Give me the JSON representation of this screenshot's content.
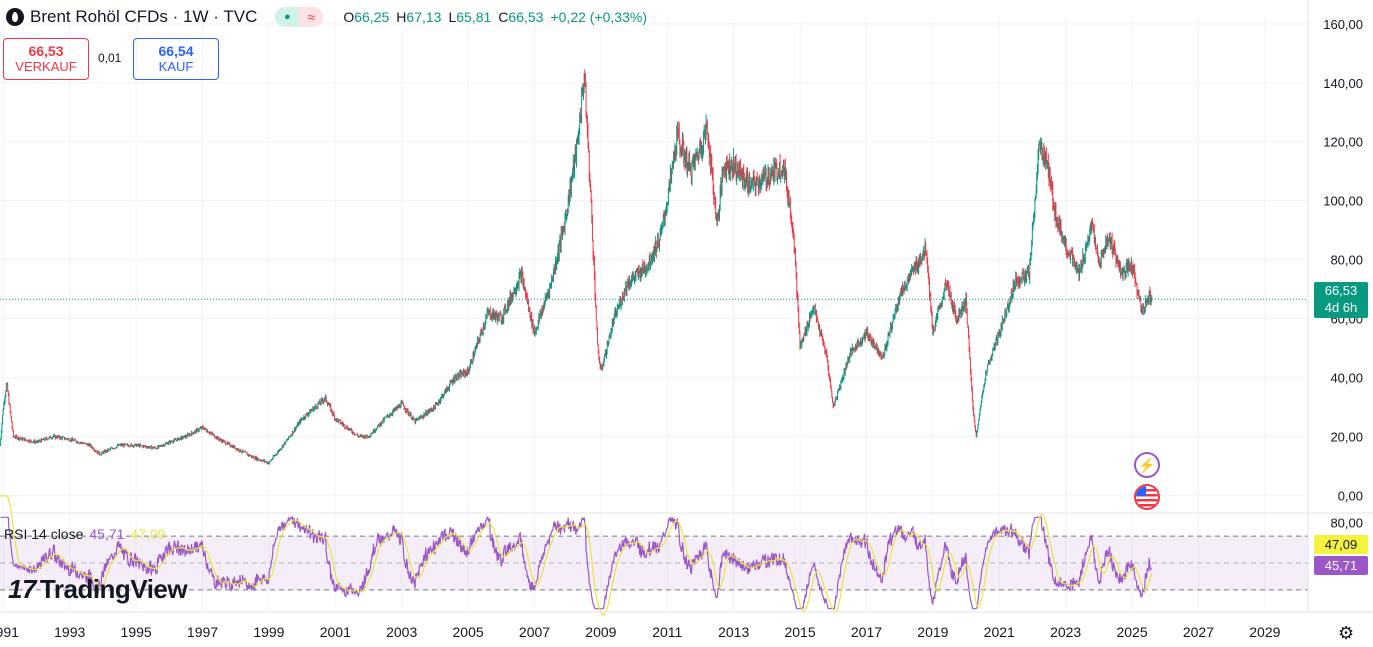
{
  "header": {
    "title": "Brent Rohöl CFDs · 1W · TVC",
    "ohlc": [
      {
        "k": "O",
        "v": "66,25"
      },
      {
        "k": "H",
        "v": "67,13"
      },
      {
        "k": "L",
        "v": "65,81"
      },
      {
        "k": "C",
        "v": "66,53"
      }
    ],
    "change": "+0,22 (+0,33%)",
    "pill_icon": "dot-icon",
    "pill_symbol": "≈"
  },
  "trade": {
    "sell_price": "66,53",
    "sell_label": "VERKAUF",
    "spread": "0,01",
    "buy_price": "66,54",
    "buy_label": "KAUF"
  },
  "price_tag": {
    "price": "66,53",
    "countdown": "4d 6h"
  },
  "rsi": {
    "label": "RSI 14 close",
    "value": "45,71",
    "ma": "47,09",
    "axis_top": "80,00"
  },
  "brand": "TradingView",
  "colors": {
    "up": "#089981",
    "down": "#f23645",
    "rsi": "#9c57c7",
    "rsi_ma": "#e6e63d",
    "accent": "#2962ff"
  },
  "chart_data": [
    {
      "type": "candlestick",
      "title": "Brent Rohöl CFDs",
      "interval": "1W",
      "x_ticks": [
        "1991",
        "1993",
        "1995",
        "1997",
        "1999",
        "2001",
        "2003",
        "2005",
        "2007",
        "2009",
        "2011",
        "2013",
        "2015",
        "2017",
        "2019",
        "2021",
        "2023",
        "2025",
        "2027",
        "2029"
      ],
      "y_ticks": [
        "0,00",
        "20,00",
        "40,00",
        "60,00",
        "80,00",
        "100,00",
        "120,00",
        "140,00",
        "160,00"
      ],
      "ylim": [
        -5,
        162
      ],
      "xlim": [
        1990.9,
        2030.3
      ],
      "last_price": 66.53,
      "price_series": [
        [
          1990.9,
          17
        ],
        [
          1991.0,
          30
        ],
        [
          1991.1,
          38
        ],
        [
          1991.3,
          20
        ],
        [
          1991.6,
          19
        ],
        [
          1992.0,
          18
        ],
        [
          1992.5,
          20
        ],
        [
          1993.0,
          19
        ],
        [
          1993.6,
          17
        ],
        [
          1993.9,
          14
        ],
        [
          1994.5,
          17
        ],
        [
          1995.0,
          17
        ],
        [
          1995.6,
          16
        ],
        [
          1996.0,
          18
        ],
        [
          1996.5,
          20
        ],
        [
          1997.0,
          23
        ],
        [
          1997.5,
          19
        ],
        [
          1998.0,
          16
        ],
        [
          1998.5,
          13
        ],
        [
          1999.0,
          11
        ],
        [
          1999.5,
          18
        ],
        [
          2000.0,
          26
        ],
        [
          2000.7,
          33
        ],
        [
          2001.0,
          26
        ],
        [
          2001.7,
          20
        ],
        [
          2002.0,
          20
        ],
        [
          2002.5,
          26
        ],
        [
          2003.0,
          31
        ],
        [
          2003.4,
          25
        ],
        [
          2004.0,
          30
        ],
        [
          2004.6,
          40
        ],
        [
          2005.0,
          42
        ],
        [
          2005.6,
          62
        ],
        [
          2006.0,
          60
        ],
        [
          2006.6,
          75
        ],
        [
          2007.0,
          55
        ],
        [
          2007.5,
          72
        ],
        [
          2007.9,
          92
        ],
        [
          2008.3,
          120
        ],
        [
          2008.5,
          143
        ],
        [
          2008.7,
          100
        ],
        [
          2008.9,
          50
        ],
        [
          2009.0,
          42
        ],
        [
          2009.4,
          60
        ],
        [
          2009.8,
          72
        ],
        [
          2010.4,
          78
        ],
        [
          2010.8,
          88
        ],
        [
          2011.0,
          100
        ],
        [
          2011.3,
          122
        ],
        [
          2011.7,
          110
        ],
        [
          2012.0,
          118
        ],
        [
          2012.2,
          125
        ],
        [
          2012.5,
          92
        ],
        [
          2012.7,
          112
        ],
        [
          2013.0,
          112
        ],
        [
          2013.5,
          105
        ],
        [
          2014.0,
          108
        ],
        [
          2014.5,
          112
        ],
        [
          2014.8,
          90
        ],
        [
          2015.0,
          50
        ],
        [
          2015.4,
          64
        ],
        [
          2015.8,
          47
        ],
        [
          2016.0,
          30
        ],
        [
          2016.5,
          48
        ],
        [
          2017.0,
          55
        ],
        [
          2017.5,
          47
        ],
        [
          2018.0,
          68
        ],
        [
          2018.5,
          78
        ],
        [
          2018.8,
          84
        ],
        [
          2019.0,
          55
        ],
        [
          2019.4,
          72
        ],
        [
          2019.7,
          60
        ],
        [
          2020.0,
          66
        ],
        [
          2020.2,
          30
        ],
        [
          2020.3,
          20
        ],
        [
          2020.6,
          42
        ],
        [
          2021.0,
          55
        ],
        [
          2021.5,
          73
        ],
        [
          2021.9,
          75
        ],
        [
          2022.2,
          118
        ],
        [
          2022.4,
          115
        ],
        [
          2022.7,
          95
        ],
        [
          2023.0,
          85
        ],
        [
          2023.4,
          75
        ],
        [
          2023.8,
          92
        ],
        [
          2024.0,
          78
        ],
        [
          2024.3,
          88
        ],
        [
          2024.7,
          75
        ],
        [
          2025.0,
          78
        ],
        [
          2025.3,
          62
        ],
        [
          2025.5,
          68
        ],
        [
          2025.6,
          66.53
        ]
      ]
    },
    {
      "type": "line",
      "title": "RSI 14 close",
      "series": [
        {
          "name": "RSI",
          "last": 45.71
        },
        {
          "name": "MA",
          "last": 47.09
        }
      ],
      "y_ticks": [
        "80,00"
      ],
      "bands": [
        30,
        70
      ],
      "ylim": [
        15,
        85
      ]
    }
  ]
}
